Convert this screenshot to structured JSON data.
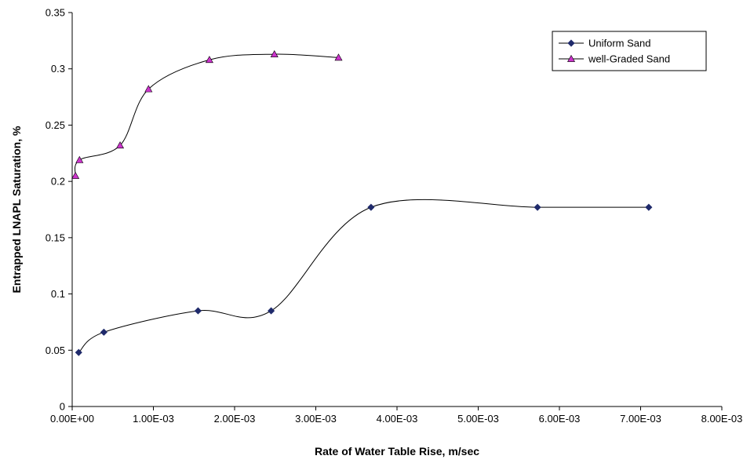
{
  "chart_data": {
    "type": "scatter",
    "title": "",
    "xlabel": "Rate of Water Table Rise, m/sec",
    "ylabel": "Entrapped LNAPL Saturation, %",
    "xlim": [
      0,
      0.008
    ],
    "ylim": [
      0,
      0.35
    ],
    "x_ticks": [
      0,
      0.001,
      0.002,
      0.003,
      0.004,
      0.005,
      0.006,
      0.007,
      0.008
    ],
    "x_tick_labels": [
      "0.00E+00",
      "1.00E-03",
      "2.00E-03",
      "3.00E-03",
      "4.00E-03",
      "5.00E-03",
      "6.00E-03",
      "7.00E-03",
      "8.00E-03"
    ],
    "y_ticks": [
      0,
      0.05,
      0.1,
      0.15,
      0.2,
      0.25,
      0.3,
      0.35
    ],
    "y_tick_labels": [
      "0",
      "0.05",
      "0.1",
      "0.15",
      "0.2",
      "0.25",
      "0.3",
      "0.35"
    ],
    "grid": false,
    "legend_position": "top-right",
    "smooth_lines": true,
    "series": [
      {
        "name": "Uniform Sand",
        "marker": "diamond",
        "color": "#1F2A6B",
        "x": [
          8e-05,
          0.00039,
          0.00155,
          0.00245,
          0.00368,
          0.00573,
          0.0071
        ],
        "y": [
          0.048,
          0.066,
          0.085,
          0.085,
          0.177,
          0.177,
          0.177
        ]
      },
      {
        "name": "well-Graded Sand",
        "marker": "triangle",
        "color": "#CC33CC",
        "x": [
          4e-05,
          9e-05,
          0.00059,
          0.00094,
          0.00169,
          0.00249,
          0.00328
        ],
        "y": [
          0.205,
          0.219,
          0.232,
          0.282,
          0.308,
          0.313,
          0.31
        ]
      }
    ]
  }
}
